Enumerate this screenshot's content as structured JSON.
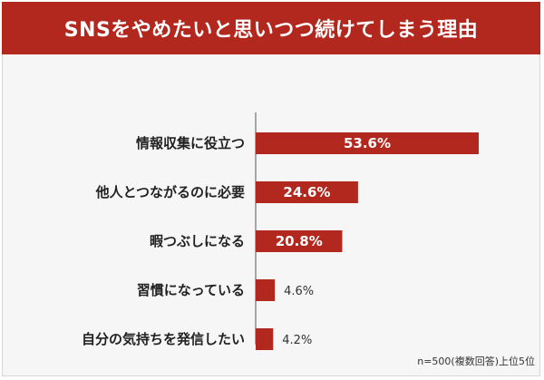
{
  "title": "SNSをやめたいと思いつつ続けてしまう理由",
  "note": "n=500(複数回答)上位5位",
  "colors": {
    "bar": "#b3281e",
    "header": "#b3281e",
    "inside_label": "#ffffff",
    "outside_label": "#333333",
    "axis": "#555555"
  },
  "chart_data": {
    "type": "bar",
    "orientation": "horizontal",
    "categories": [
      "情報収集に役立つ",
      "他人とつながるのに必要",
      "暇つぶしになる",
      "習慣になっている",
      "自分の気持ちを発信したい"
    ],
    "values": [
      53.6,
      24.6,
      20.8,
      4.6,
      4.2
    ],
    "value_labels": [
      "53.6%",
      "24.6%",
      "20.8%",
      "4.6%",
      "4.2%"
    ],
    "title": "SNSをやめたいと思いつつ続けてしまう理由",
    "xlim": [
      0,
      53.6
    ],
    "grid": false,
    "legend": "none"
  }
}
